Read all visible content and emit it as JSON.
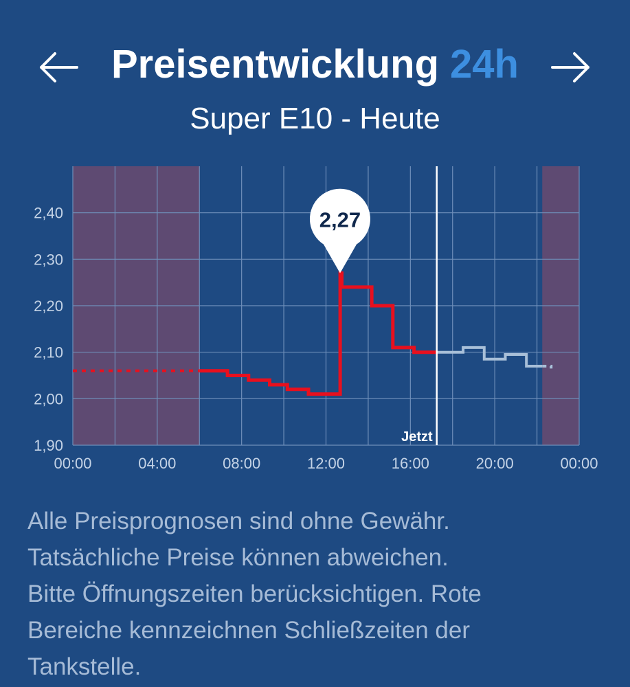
{
  "header": {
    "title": "Preisentwicklung",
    "title_accent": "24h",
    "subtitle": "Super E10 - Heute",
    "prev_icon": "arrow-left-icon",
    "next_icon": "arrow-right-icon"
  },
  "colors": {
    "background": "#1e4a82",
    "accent": "#3d8fe0",
    "price_line": "#e8101e",
    "forecast_line": "#a8bfd8",
    "closed_area": "#5e4a72"
  },
  "chart_data": {
    "type": "line",
    "title": "",
    "xlabel": "",
    "ylabel": "",
    "x_ticks": [
      "00:00",
      "04:00",
      "08:00",
      "12:00",
      "16:00",
      "20:00",
      "00:00"
    ],
    "y_ticks": [
      "1,90",
      "2,00",
      "2,10",
      "2,20",
      "2,30",
      "2,40"
    ],
    "ylim": [
      1.9,
      2.5
    ],
    "xlim_hours": [
      0,
      24
    ],
    "grid": true,
    "closed_periods": [
      {
        "from": "00:00",
        "to": "06:00"
      },
      {
        "from": "22:15",
        "to": "24:00"
      }
    ],
    "now_label": "Jetzt",
    "now_time": "17:15",
    "peak_label": "2,27",
    "peak_time": "12:40",
    "peak_value": 2.27,
    "series": [
      {
        "role": "closed-estimate",
        "style": "dotted",
        "points": [
          [
            0.0,
            2.06
          ],
          [
            6.0,
            2.06
          ]
        ]
      },
      {
        "role": "actual",
        "style": "step",
        "points": [
          [
            6.0,
            2.06
          ],
          [
            7.33,
            2.06
          ],
          [
            7.33,
            2.05
          ],
          [
            8.33,
            2.05
          ],
          [
            8.33,
            2.04
          ],
          [
            9.33,
            2.04
          ],
          [
            9.33,
            2.03
          ],
          [
            10.17,
            2.03
          ],
          [
            10.17,
            2.02
          ],
          [
            11.17,
            2.02
          ],
          [
            11.17,
            2.01
          ],
          [
            12.67,
            2.01
          ],
          [
            12.67,
            2.27
          ],
          [
            12.75,
            2.27
          ],
          [
            12.75,
            2.24
          ],
          [
            14.17,
            2.24
          ],
          [
            14.17,
            2.2
          ],
          [
            15.17,
            2.2
          ],
          [
            15.17,
            2.11
          ],
          [
            16.17,
            2.11
          ],
          [
            16.17,
            2.1
          ],
          [
            17.25,
            2.1
          ]
        ]
      },
      {
        "role": "forecast",
        "style": "step",
        "points": [
          [
            17.25,
            2.1
          ],
          [
            18.5,
            2.1
          ],
          [
            18.5,
            2.11
          ],
          [
            19.5,
            2.11
          ],
          [
            19.5,
            2.085
          ],
          [
            20.5,
            2.085
          ],
          [
            20.5,
            2.095
          ],
          [
            21.5,
            2.095
          ],
          [
            21.5,
            2.07
          ],
          [
            22.25,
            2.07
          ]
        ]
      },
      {
        "role": "forecast-closed",
        "style": "dashed",
        "points": [
          [
            22.25,
            2.07
          ],
          [
            22.67,
            2.07
          ],
          [
            22.67,
            2.065
          ]
        ]
      }
    ]
  },
  "disclaimer": {
    "line1": "Alle Preisprognosen sind ohne Gewähr.",
    "line2": "Tatsächliche Preise können abweichen.",
    "line3": "Bitte Öffnungszeiten berücksichtigen. Rote",
    "line4": "Bereiche kennzeichnen Schließzeiten der",
    "line5": "Tankstelle."
  }
}
